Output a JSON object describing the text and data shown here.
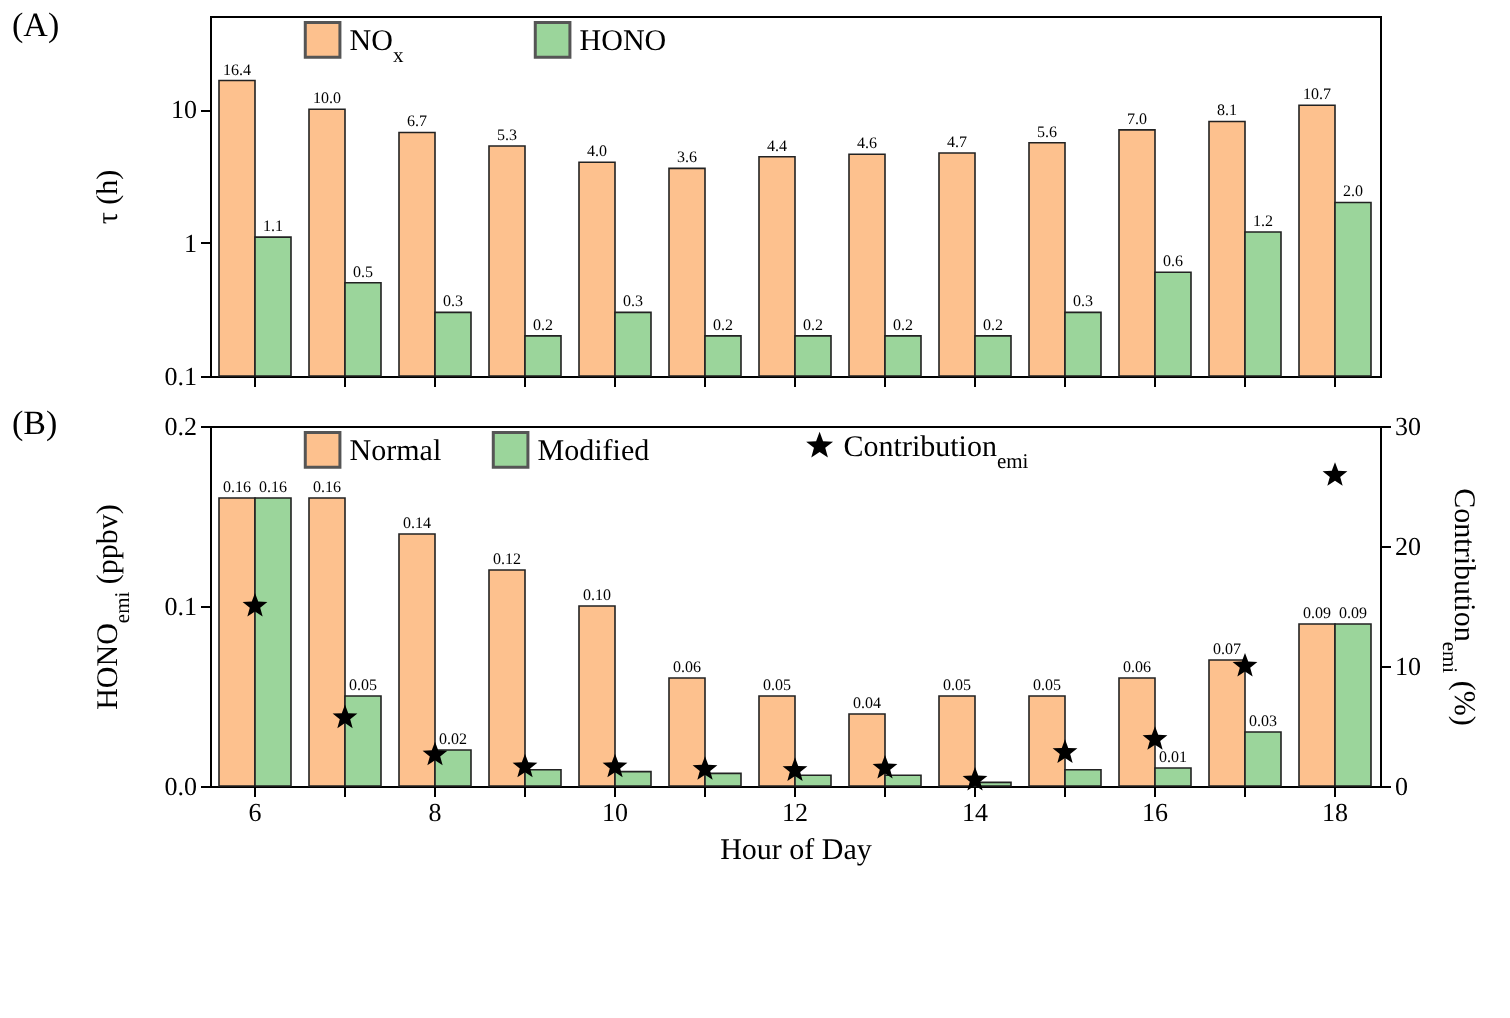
{
  "chart_data": [
    {
      "type": "bar",
      "title": "(A)",
      "ylabel": "τ (h)",
      "categories": [
        "6",
        null,
        "8",
        null,
        "10",
        null,
        "12",
        null,
        "14",
        null,
        "16",
        null,
        "18"
      ],
      "series": [
        {
          "name": "NO$_{x}$",
          "color": "#fdc18e",
          "values": [
            16.4,
            10.0,
            6.7,
            5.3,
            4.0,
            3.6,
            4.4,
            4.6,
            4.7,
            5.6,
            7.0,
            8.1,
            10.7
          ],
          "value_labels": [
            "16.4",
            "10.0",
            "6.7",
            "5.3",
            "4.0",
            "3.6",
            "4.4",
            "4.6",
            "4.7",
            "5.6",
            "7.0",
            "8.1",
            "10.7"
          ]
        },
        {
          "name": "HONO",
          "color": "#9bd59b",
          "values": [
            1.1,
            0.5,
            0.3,
            0.2,
            0.3,
            0.2,
            0.2,
            0.2,
            0.2,
            0.3,
            0.6,
            1.2,
            2.0
          ],
          "value_labels": [
            "1.1",
            "0.5",
            "0.3",
            "0.2",
            "0.3",
            "0.2",
            "0.2",
            "0.2",
            "0.2",
            "0.3",
            "0.6",
            "1.2",
            "2.0"
          ]
        }
      ],
      "log": "y",
      "ylim": [
        0.1,
        50
      ],
      "yticks": [
        0.1,
        1,
        10
      ],
      "tick_labels": "y",
      "legend": "top"
    },
    {
      "type": "bar",
      "title": "(B)",
      "xlabel": "Hour of Day",
      "ylabel": "HONO$_{emi}$ (ppbv)",
      "y2label": "Contribution$_{emi}$ (%)",
      "categories": [
        "6",
        null,
        "8",
        null,
        "10",
        null,
        "12",
        null,
        "14",
        null,
        "16",
        null,
        "18"
      ],
      "series": [
        {
          "name": "Normal",
          "color": "#fdc18e",
          "values": [
            0.16,
            0.16,
            0.14,
            0.12,
            0.1,
            0.06,
            0.05,
            0.04,
            0.05,
            0.05,
            0.06,
            0.07,
            0.09
          ],
          "value_labels": [
            "0.16",
            "0.16",
            "0.14",
            "0.12",
            "0.10",
            "0.06",
            "0.05",
            "0.04",
            "0.05",
            "0.05",
            "0.06",
            "0.07",
            "0.09"
          ]
        },
        {
          "name": "Modified",
          "color": "#9bd59b",
          "values": [
            0.16,
            0.05,
            0.02,
            0.009,
            0.008,
            0.007,
            0.006,
            0.006,
            0.002,
            0.009,
            0.01,
            0.03,
            0.09
          ],
          "value_labels": [
            "0.16",
            "0.05",
            "0.02",
            null,
            null,
            null,
            null,
            null,
            null,
            null,
            "0.01",
            "0.03",
            "0.09"
          ]
        },
        {
          "name": "Contribution$_{emi}$",
          "type": "scatter",
          "axis": "y2",
          "color": "#000000",
          "marker": "star",
          "values": [
            15.0,
            5.7,
            2.6,
            1.6,
            1.6,
            1.4,
            1.3,
            1.5,
            0.5,
            2.8,
            3.9,
            10.0,
            25.9
          ]
        }
      ],
      "ylim": [
        0,
        0.2
      ],
      "yticks": [
        {
          "value": 0,
          "label": "0.0"
        },
        {
          "value": 0.1,
          "label": "0.1"
        },
        {
          "value": 0.2,
          "label": "0.2"
        }
      ],
      "y2lim": [
        0,
        30
      ],
      "y2ticks": [
        0,
        10,
        20,
        30
      ],
      "legend": "top"
    }
  ]
}
